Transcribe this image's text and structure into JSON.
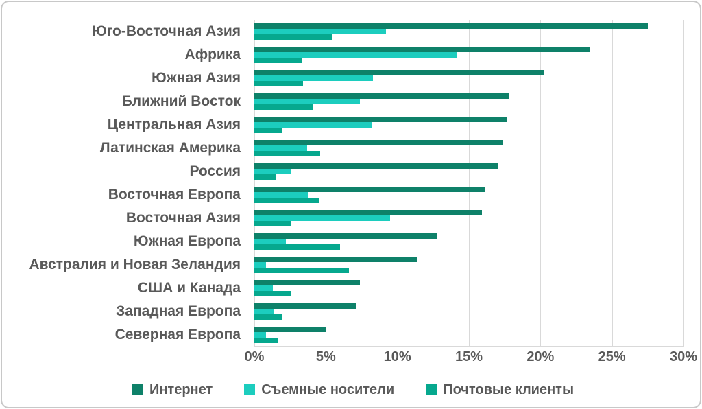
{
  "chart_data": {
    "type": "bar",
    "orientation": "horizontal",
    "title": "",
    "categories": [
      "Юго-Восточная Азия",
      "Африка",
      "Южная Азия",
      "Ближний Восток",
      "Центральная Азия",
      "Латинская Америка",
      "Россия",
      "Восточная Европа",
      "Восточная Азия",
      "Южная Европа",
      "Австралия и Новая Зеландия",
      "США и Канада",
      "Западная Европа",
      "Северная Европа"
    ],
    "series": [
      {
        "name": "Интернет",
        "key": "internet",
        "color": "#0E8169",
        "values": [
          27.5,
          23.5,
          20.2,
          17.8,
          17.7,
          17.4,
          17.0,
          16.1,
          15.9,
          12.8,
          11.4,
          7.4,
          7.1,
          5.0
        ]
      },
      {
        "name": "Съемные носители",
        "key": "removable-media",
        "color": "#1CCDBE",
        "values": [
          9.2,
          14.2,
          8.3,
          7.4,
          8.2,
          3.7,
          2.6,
          3.8,
          9.5,
          2.2,
          0.8,
          1.3,
          1.4,
          0.8
        ]
      },
      {
        "name": "Почтовые клиенты",
        "key": "email-clients",
        "color": "#06A88E",
        "values": [
          5.4,
          3.3,
          3.4,
          4.1,
          1.9,
          4.6,
          1.5,
          4.5,
          2.6,
          6.0,
          6.6,
          2.6,
          1.9,
          1.7
        ]
      }
    ],
    "x_axis": {
      "min": 0,
      "max": 30,
      "step": 5,
      "unit": "%",
      "tick_labels": [
        "0%",
        "5%",
        "10%",
        "15%",
        "20%",
        "25%",
        "30%"
      ]
    },
    "legend_position": "bottom",
    "grid": true
  },
  "styles": {
    "text_color": "#595959",
    "gridline_color": "#D9D9D9",
    "frame_border_color": "#C8C8C8",
    "background": "#FFFFFF"
  }
}
